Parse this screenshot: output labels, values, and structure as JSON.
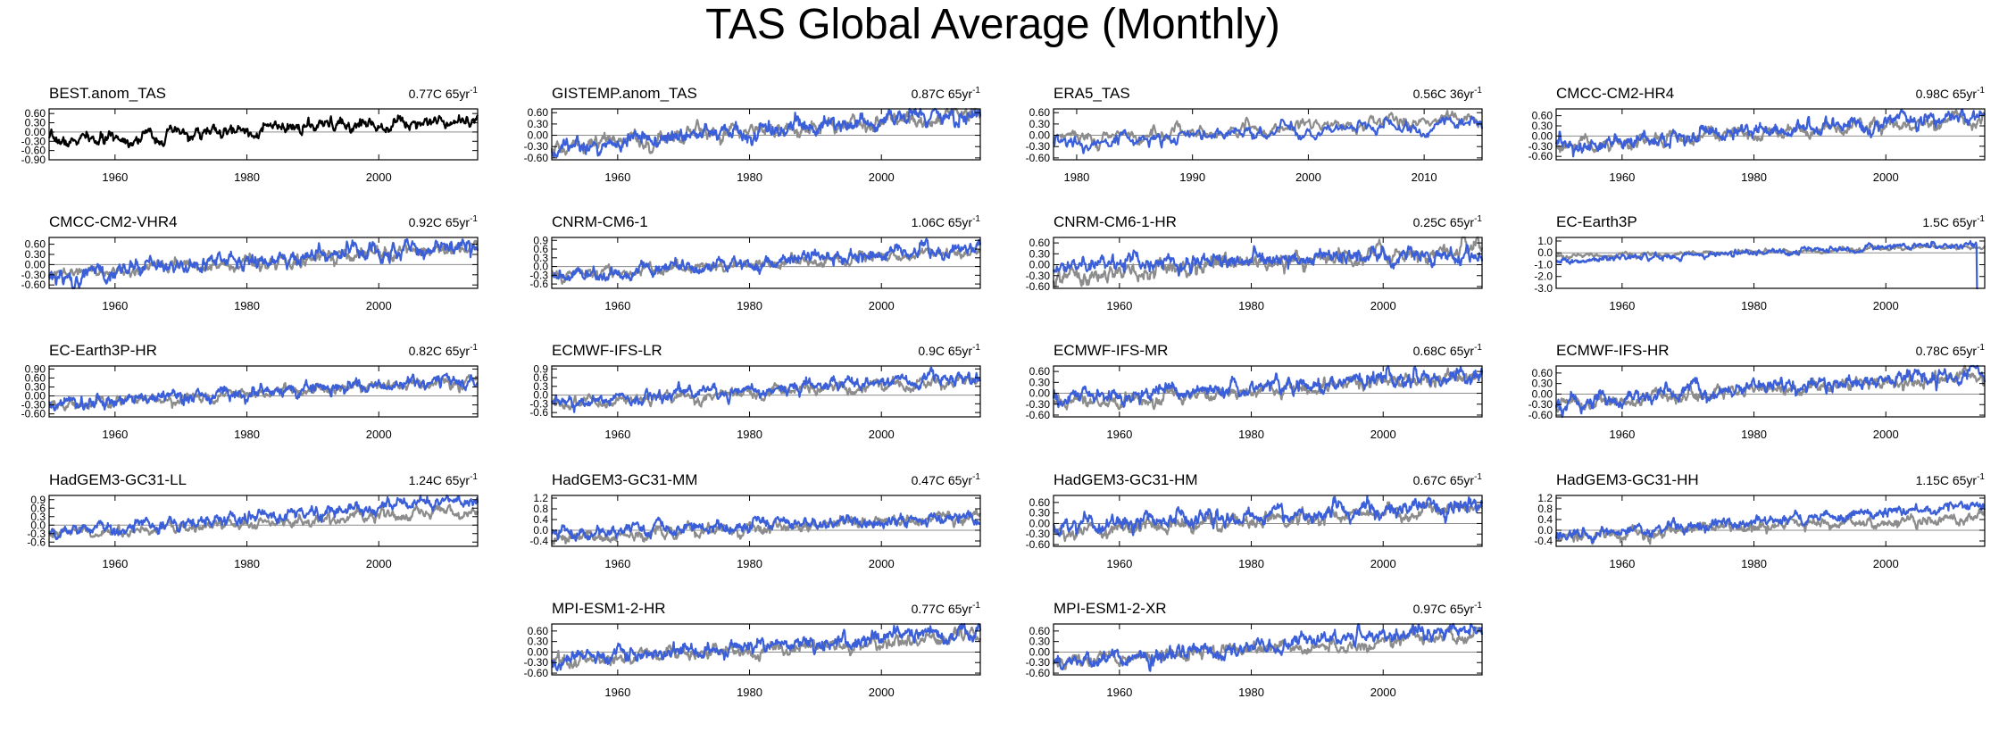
{
  "title": "TAS Global Average (Monthly)",
  "colors": {
    "obs_reference": "#8c8c8c",
    "series": "#3a5fd9",
    "observation": "#000000",
    "zero_line": "#8c8c8c"
  },
  "chart_data": [
    {
      "panel": "BEST.anom_TAS",
      "type": "line",
      "annotation": {
        "text": "0.77C 65yr",
        "sup": "-1"
      },
      "xlim": [
        1950,
        2015
      ],
      "xticks": [
        1960,
        1980,
        2000
      ],
      "ylim": [
        -0.9,
        0.75
      ],
      "yticks": [
        "-0.90",
        "-0.60",
        "-0.30",
        "0.00",
        "0.30",
        "0.60"
      ],
      "ytick_values": [
        -0.9,
        -0.6,
        -0.3,
        0,
        0.3,
        0.6
      ],
      "series": [
        {
          "role": "observation",
          "start": 1950,
          "end": 2015,
          "trend_start": -0.33,
          "trend_end": 0.46,
          "noise": 0.11
        }
      ]
    },
    {
      "panel": "GISTEMP.anom_TAS",
      "type": "line",
      "annotation": {
        "text": "0.87C 65yr",
        "sup": "-1"
      },
      "xlim": [
        1950,
        2015
      ],
      "xticks": [
        1960,
        1980,
        2000
      ],
      "ylim": [
        -0.65,
        0.7
      ],
      "yticks": [
        "-0.60",
        "-0.30",
        "0.00",
        "0.30",
        "0.60"
      ],
      "ytick_values": [
        -0.6,
        -0.3,
        0,
        0.3,
        0.6
      ],
      "series": [
        {
          "role": "reference",
          "start": 1950,
          "end": 2015,
          "trend_start": -0.3,
          "trend_end": 0.55,
          "noise": 0.11
        },
        {
          "role": "model",
          "start": 1950,
          "end": 2015,
          "trend_start": -0.32,
          "trend_end": 0.58,
          "noise": 0.12
        }
      ]
    },
    {
      "panel": "ERA5_TAS",
      "type": "line",
      "annotation": {
        "text": "0.56C 36yr",
        "sup": "-1"
      },
      "xlim": [
        1978,
        2015
      ],
      "xticks": [
        1980,
        1990,
        2000,
        2010
      ],
      "ylim": [
        -0.65,
        0.7
      ],
      "yticks": [
        "-0.60",
        "-0.30",
        "0.00",
        "0.30",
        "0.60"
      ],
      "ytick_values": [
        -0.6,
        -0.3,
        0,
        0.3,
        0.6
      ],
      "series": [
        {
          "role": "reference",
          "start": 1978,
          "end": 2015,
          "trend_start": -0.1,
          "trend_end": 0.45,
          "noise": 0.12
        },
        {
          "role": "model",
          "start": 1978,
          "end": 2015,
          "trend_start": -0.2,
          "trend_end": 0.35,
          "noise": 0.12
        }
      ]
    },
    {
      "panel": "CMCC-CM2-HR4",
      "type": "line",
      "annotation": {
        "text": "0.98C 65yr",
        "sup": "-1"
      },
      "xlim": [
        1950,
        2015
      ],
      "xticks": [
        1960,
        1980,
        2000
      ],
      "ylim": [
        -0.7,
        0.8
      ],
      "yticks": [
        "-0.60",
        "-0.30",
        "0.00",
        "0.30",
        "0.60"
      ],
      "ytick_values": [
        -0.6,
        -0.3,
        0,
        0.3,
        0.6
      ],
      "series": [
        {
          "role": "reference",
          "start": 1950,
          "end": 2015,
          "trend_start": -0.3,
          "trend_end": 0.5,
          "noise": 0.1
        },
        {
          "role": "model",
          "start": 1950,
          "end": 2015,
          "trend_start": -0.35,
          "trend_end": 0.65,
          "noise": 0.12
        }
      ]
    },
    {
      "panel": "CMCC-CM2-VHR4",
      "type": "line",
      "annotation": {
        "text": "0.92C 65yr",
        "sup": "-1"
      },
      "xlim": [
        1950,
        2015
      ],
      "xticks": [
        1960,
        1980,
        2000
      ],
      "ylim": [
        -0.7,
        0.8
      ],
      "yticks": [
        "-0.60",
        "-0.30",
        "0.00",
        "0.30",
        "0.60"
      ],
      "ytick_values": [
        -0.6,
        -0.3,
        0,
        0.3,
        0.6
      ],
      "series": [
        {
          "role": "reference",
          "start": 1950,
          "end": 2015,
          "trend_start": -0.3,
          "trend_end": 0.5,
          "noise": 0.1
        },
        {
          "role": "model",
          "start": 1950,
          "end": 2015,
          "trend_start": -0.35,
          "trend_end": 0.6,
          "noise": 0.13
        }
      ]
    },
    {
      "panel": "CNRM-CM6-1",
      "type": "line",
      "annotation": {
        "text": "1.06C 65yr",
        "sup": "-1"
      },
      "xlim": [
        1950,
        2015
      ],
      "xticks": [
        1960,
        1980,
        2000
      ],
      "ylim": [
        -0.75,
        1.0
      ],
      "yticks": [
        "-0.6",
        "-0.3",
        "0.0",
        "0.3",
        "0.6",
        "0.9"
      ],
      "ytick_values": [
        -0.6,
        -0.3,
        0,
        0.3,
        0.6,
        0.9
      ],
      "series": [
        {
          "role": "reference",
          "start": 1950,
          "end": 2015,
          "trend_start": -0.3,
          "trend_end": 0.5,
          "noise": 0.1
        },
        {
          "role": "model",
          "start": 1950,
          "end": 2015,
          "trend_start": -0.38,
          "trend_end": 0.7,
          "noise": 0.13
        }
      ]
    },
    {
      "panel": "CNRM-CM6-1-HR",
      "type": "line",
      "annotation": {
        "text": "0.25C 65yr",
        "sup": "-1"
      },
      "xlim": [
        1950,
        2015
      ],
      "xticks": [
        1960,
        1980,
        2000
      ],
      "ylim": [
        -0.65,
        0.75
      ],
      "yticks": [
        "-0.60",
        "-0.30",
        "0.00",
        "0.30",
        "0.60"
      ],
      "ytick_values": [
        -0.6,
        -0.3,
        0,
        0.3,
        0.6
      ],
      "series": [
        {
          "role": "reference",
          "start": 1950,
          "end": 2015,
          "trend_start": -0.35,
          "trend_end": 0.5,
          "noise": 0.12
        },
        {
          "role": "model",
          "start": 1950,
          "end": 2015,
          "trend_start": 0.0,
          "trend_end": 0.3,
          "noise": 0.12
        }
      ]
    },
    {
      "panel": "EC-Earth3P",
      "type": "line",
      "annotation": {
        "text": "1.5C 65yr",
        "sup": "-1"
      },
      "xlim": [
        1950,
        2015
      ],
      "xticks": [
        1960,
        1980,
        2000
      ],
      "ylim": [
        -3.0,
        1.3
      ],
      "yticks": [
        "-3.0",
        "-2.0",
        "-1.0",
        "0.0",
        "1.0"
      ],
      "ytick_values": [
        -3,
        -2,
        -1,
        0,
        1
      ],
      "series": [
        {
          "role": "reference",
          "start": 1950,
          "end": 2015,
          "trend_start": -0.3,
          "trend_end": 0.5,
          "noise": 0.1
        },
        {
          "role": "model",
          "start": 1950,
          "end": 2014,
          "trend_start": -0.7,
          "trend_end": 0.8,
          "noise": 0.15,
          "end_drop": -3.0
        }
      ]
    },
    {
      "panel": "EC-Earth3P-HR",
      "type": "line",
      "annotation": {
        "text": "0.82C 65yr",
        "sup": "-1"
      },
      "xlim": [
        1950,
        2015
      ],
      "xticks": [
        1960,
        1980,
        2000
      ],
      "ylim": [
        -0.7,
        1.0
      ],
      "yticks": [
        "-0.60",
        "-0.30",
        "0.00",
        "0.30",
        "0.60",
        "0.90"
      ],
      "ytick_values": [
        -0.6,
        -0.3,
        0,
        0.3,
        0.6,
        0.9
      ],
      "series": [
        {
          "role": "reference",
          "start": 1950,
          "end": 2015,
          "trend_start": -0.3,
          "trend_end": 0.5,
          "noise": 0.1
        },
        {
          "role": "model",
          "start": 1950,
          "end": 2015,
          "trend_start": -0.28,
          "trend_end": 0.55,
          "noise": 0.12
        }
      ]
    },
    {
      "panel": "ECMWF-IFS-LR",
      "type": "line",
      "annotation": {
        "text": "0.9C 65yr",
        "sup": "-1"
      },
      "xlim": [
        1950,
        2015
      ],
      "xticks": [
        1960,
        1980,
        2000
      ],
      "ylim": [
        -0.75,
        1.0
      ],
      "yticks": [
        "-0.6",
        "-0.3",
        "0.0",
        "0.3",
        "0.6",
        "0.9"
      ],
      "ytick_values": [
        -0.6,
        -0.3,
        0,
        0.3,
        0.6,
        0.9
      ],
      "series": [
        {
          "role": "reference",
          "start": 1950,
          "end": 2015,
          "trend_start": -0.3,
          "trend_end": 0.5,
          "noise": 0.1
        },
        {
          "role": "model",
          "start": 1950,
          "end": 2015,
          "trend_start": -0.25,
          "trend_end": 0.65,
          "noise": 0.12
        }
      ]
    },
    {
      "panel": "ECMWF-IFS-MR",
      "type": "line",
      "annotation": {
        "text": "0.68C 65yr",
        "sup": "-1"
      },
      "xlim": [
        1950,
        2015
      ],
      "xticks": [
        1960,
        1980,
        2000
      ],
      "ylim": [
        -0.65,
        0.75
      ],
      "yticks": [
        "-0.60",
        "-0.30",
        "0.00",
        "0.30",
        "0.60"
      ],
      "ytick_values": [
        -0.6,
        -0.3,
        0,
        0.3,
        0.6
      ],
      "series": [
        {
          "role": "reference",
          "start": 1950,
          "end": 2015,
          "trend_start": -0.3,
          "trend_end": 0.5,
          "noise": 0.1
        },
        {
          "role": "model",
          "start": 1950,
          "end": 2015,
          "trend_start": -0.15,
          "trend_end": 0.5,
          "noise": 0.12
        }
      ]
    },
    {
      "panel": "ECMWF-IFS-HR",
      "type": "line",
      "annotation": {
        "text": "0.78C 65yr",
        "sup": "-1"
      },
      "xlim": [
        1950,
        2015
      ],
      "xticks": [
        1960,
        1980,
        2000
      ],
      "ylim": [
        -0.65,
        0.8
      ],
      "yticks": [
        "-0.60",
        "-0.30",
        "0.00",
        "0.30",
        "0.60"
      ],
      "ytick_values": [
        -0.6,
        -0.3,
        0,
        0.3,
        0.6
      ],
      "series": [
        {
          "role": "reference",
          "start": 1950,
          "end": 2015,
          "trend_start": -0.3,
          "trend_end": 0.5,
          "noise": 0.1
        },
        {
          "role": "model",
          "start": 1950,
          "end": 2015,
          "trend_start": -0.2,
          "trend_end": 0.55,
          "noise": 0.12
        }
      ]
    },
    {
      "panel": "HadGEM3-GC31-LL",
      "type": "line",
      "annotation": {
        "text": "1.24C 65yr",
        "sup": "-1"
      },
      "xlim": [
        1950,
        2015
      ],
      "xticks": [
        1960,
        1980,
        2000
      ],
      "ylim": [
        -0.75,
        1.05
      ],
      "yticks": [
        "-0.6",
        "-0.3",
        "0.0",
        "0.3",
        "0.6",
        "0.9"
      ],
      "ytick_values": [
        -0.6,
        -0.3,
        0,
        0.3,
        0.6,
        0.9
      ],
      "series": [
        {
          "role": "reference",
          "start": 1950,
          "end": 2015,
          "trend_start": -0.3,
          "trend_end": 0.5,
          "noise": 0.1
        },
        {
          "role": "model",
          "start": 1950,
          "end": 2015,
          "trend_start": -0.3,
          "trend_end": 0.9,
          "noise": 0.12
        }
      ]
    },
    {
      "panel": "HadGEM3-GC31-MM",
      "type": "line",
      "annotation": {
        "text": "0.47C 65yr",
        "sup": "-1"
      },
      "xlim": [
        1950,
        2015
      ],
      "xticks": [
        1960,
        1980,
        2000
      ],
      "ylim": [
        -0.6,
        1.3
      ],
      "yticks": [
        "-0.4",
        "0.0",
        "0.4",
        "0.8",
        "1.2"
      ],
      "ytick_values": [
        -0.4,
        0,
        0.4,
        0.8,
        1.2
      ],
      "series": [
        {
          "role": "reference",
          "start": 1950,
          "end": 2015,
          "trend_start": -0.3,
          "trend_end": 0.5,
          "noise": 0.12
        },
        {
          "role": "model",
          "start": 1950,
          "end": 2015,
          "trend_start": -0.1,
          "trend_end": 0.5,
          "noise": 0.13
        }
      ]
    },
    {
      "panel": "HadGEM3-GC31-HM",
      "type": "line",
      "annotation": {
        "text": "0.67C 65yr",
        "sup": "-1"
      },
      "xlim": [
        1950,
        2015
      ],
      "xticks": [
        1960,
        1980,
        2000
      ],
      "ylim": [
        -0.65,
        0.8
      ],
      "yticks": [
        "-0.60",
        "-0.30",
        "0.00",
        "0.30",
        "0.60"
      ],
      "ytick_values": [
        -0.6,
        -0.3,
        0,
        0.3,
        0.6
      ],
      "series": [
        {
          "role": "reference",
          "start": 1950,
          "end": 2015,
          "trend_start": -0.3,
          "trend_end": 0.5,
          "noise": 0.1
        },
        {
          "role": "model",
          "start": 1950,
          "end": 2015,
          "trend_start": -0.12,
          "trend_end": 0.55,
          "noise": 0.13
        }
      ]
    },
    {
      "panel": "HadGEM3-GC31-HH",
      "type": "line",
      "annotation": {
        "text": "1.15C 65yr",
        "sup": "-1"
      },
      "xlim": [
        1950,
        2015
      ],
      "xticks": [
        1960,
        1980,
        2000
      ],
      "ylim": [
        -0.6,
        1.3
      ],
      "yticks": [
        "-0.4",
        "0.0",
        "0.4",
        "0.8",
        "1.2"
      ],
      "ytick_values": [
        -0.4,
        0,
        0.4,
        0.8,
        1.2
      ],
      "series": [
        {
          "role": "reference",
          "start": 1950,
          "end": 2015,
          "trend_start": -0.3,
          "trend_end": 0.5,
          "noise": 0.12
        },
        {
          "role": "model",
          "start": 1950,
          "end": 2015,
          "trend_start": -0.25,
          "trend_end": 0.95,
          "noise": 0.12
        }
      ]
    },
    {
      "panel": "MPI-ESM1-2-HR",
      "type": "line",
      "annotation": {
        "text": "0.77C 65yr",
        "sup": "-1"
      },
      "xlim": [
        1950,
        2015
      ],
      "xticks": [
        1960,
        1980,
        2000
      ],
      "ylim": [
        -0.65,
        0.8
      ],
      "yticks": [
        "-0.60",
        "-0.30",
        "0.00",
        "0.30",
        "0.60"
      ],
      "ytick_values": [
        -0.6,
        -0.3,
        0,
        0.3,
        0.6
      ],
      "series": [
        {
          "role": "reference",
          "start": 1950,
          "end": 2015,
          "trend_start": -0.3,
          "trend_end": 0.5,
          "noise": 0.1
        },
        {
          "role": "model",
          "start": 1950,
          "end": 2015,
          "trend_start": -0.2,
          "trend_end": 0.57,
          "noise": 0.12
        }
      ]
    },
    {
      "panel": "MPI-ESM1-2-XR",
      "type": "line",
      "annotation": {
        "text": "0.97C 65yr",
        "sup": "-1"
      },
      "xlim": [
        1950,
        2015
      ],
      "xticks": [
        1960,
        1980,
        2000
      ],
      "ylim": [
        -0.65,
        0.8
      ],
      "yticks": [
        "-0.60",
        "-0.30",
        "0.00",
        "0.30",
        "0.60"
      ],
      "ytick_values": [
        -0.6,
        -0.3,
        0,
        0.3,
        0.6
      ],
      "series": [
        {
          "role": "reference",
          "start": 1950,
          "end": 2015,
          "trend_start": -0.3,
          "trend_end": 0.5,
          "noise": 0.1
        },
        {
          "role": "model",
          "start": 1950,
          "end": 2015,
          "trend_start": -0.3,
          "trend_end": 0.67,
          "noise": 0.12
        }
      ]
    }
  ]
}
